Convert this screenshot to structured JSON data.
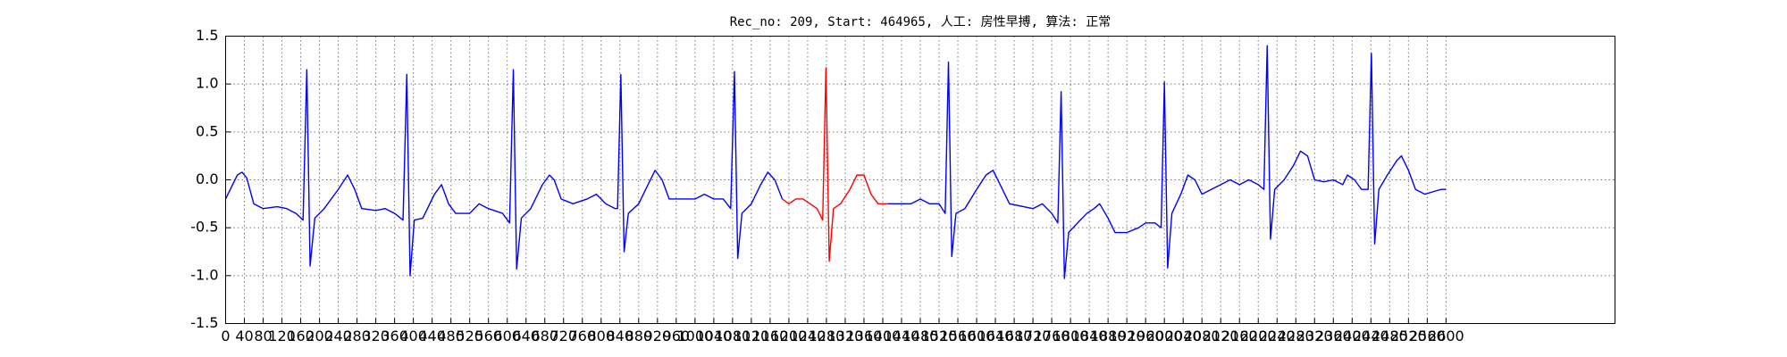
{
  "chart_data": {
    "type": "line",
    "title": "Rec_no: 209, Start: 464965, 人工: 房性早搏, 算法: 正常",
    "xlim": [
      0,
      2960
    ],
    "ylim": [
      -1.5,
      1.5
    ],
    "xticks": [
      0,
      40,
      80,
      120,
      160,
      200,
      240,
      280,
      320,
      360,
      400,
      440,
      480,
      520,
      560,
      600,
      640,
      680,
      720,
      760,
      800,
      840,
      880,
      920,
      960,
      1000,
      1040,
      1080,
      1120,
      1160,
      1200,
      1240,
      1280,
      1320,
      1360,
      1400,
      1440,
      1480,
      1520,
      1560,
      1600,
      1640,
      1680,
      1720,
      1760,
      1800,
      1840,
      1880,
      1920,
      1960,
      2000,
      2040,
      2080,
      2120,
      2160,
      2200,
      2240,
      2280,
      2320,
      2360,
      2400,
      2440,
      2480,
      2520,
      2560,
      2600
    ],
    "yticks": [
      -1.5,
      {
        "value": -1.0,
        "label": "-1.0"
      },
      -0.5,
      {
        "value": 0.0,
        "label": "0.0"
      },
      0.5,
      {
        "value": 1.0,
        "label": "1.0"
      },
      1.5
    ],
    "grid": true,
    "series": [
      {
        "color": "#0000ff",
        "x": [
          0,
          10,
          25,
          35,
          45,
          60,
          80,
          110,
          130,
          150,
          165,
          173,
          180,
          190,
          210,
          240,
          260,
          275,
          290,
          320,
          340,
          360,
          378,
          386,
          393,
          402,
          420,
          445,
          460,
          475,
          490,
          520,
          540,
          560,
          590,
          605,
          613,
          620,
          630,
          650,
          675,
          690,
          700,
          715,
          740,
          770,
          790,
          810,
          830,
          835,
          842,
          849,
          858,
          880,
          900,
          915,
          930,
          945,
          980,
          1000,
          1020,
          1040,
          1060,
          1076,
          1084,
          1091,
          1100,
          1120,
          1140,
          1155,
          1170,
          1186
        ],
        "values": [
          -0.2,
          -0.1,
          0.05,
          0.08,
          0.02,
          -0.25,
          -0.3,
          -0.28,
          -0.3,
          -0.35,
          -0.42,
          1.15,
          -0.9,
          -0.4,
          -0.3,
          -0.1,
          0.05,
          -0.1,
          -0.3,
          -0.32,
          -0.3,
          -0.35,
          -0.42,
          1.1,
          -1.0,
          -0.42,
          -0.4,
          -0.15,
          -0.05,
          -0.25,
          -0.35,
          -0.35,
          -0.25,
          -0.3,
          -0.35,
          -0.45,
          1.15,
          -0.93,
          -0.4,
          -0.3,
          -0.05,
          0.05,
          0.0,
          -0.2,
          -0.25,
          -0.2,
          -0.15,
          -0.25,
          -0.3,
          -0.3,
          1.1,
          -0.75,
          -0.35,
          -0.25,
          -0.05,
          0.1,
          0.0,
          -0.2,
          -0.2,
          -0.2,
          -0.15,
          -0.2,
          -0.2,
          -0.3,
          1.13,
          -0.82,
          -0.35,
          -0.25,
          -0.05,
          0.08,
          0.0,
          -0.2
        ]
      },
      {
        "color": "#ff0000",
        "x": [
          1186,
          1200,
          1215,
          1230,
          1245,
          1260,
          1272,
          1279,
          1286,
          1295,
          1310,
          1330,
          1345,
          1360,
          1375,
          1390,
          1411
        ],
        "values": [
          -0.2,
          -0.25,
          -0.2,
          -0.2,
          -0.25,
          -0.3,
          -0.42,
          1.17,
          -0.85,
          -0.3,
          -0.25,
          -0.1,
          0.05,
          0.05,
          -0.15,
          -0.25,
          -0.25
        ]
      },
      {
        "color": "#0000ff",
        "x": [
          1411,
          1430,
          1460,
          1480,
          1500,
          1520,
          1533,
          1540,
          1547,
          1556,
          1575,
          1600,
          1620,
          1635,
          1650,
          1670,
          1700,
          1720,
          1740,
          1760,
          1773,
          1780,
          1787,
          1796,
          1815,
          1835,
          1850,
          1862,
          1880,
          1895,
          1920,
          1945,
          1960,
          1980,
          1993,
          2000,
          2007,
          2016,
          2035,
          2050,
          2065,
          2080,
          2100,
          2120,
          2140,
          2160,
          2180,
          2200,
          2212,
          2219,
          2226,
          2235,
          2255,
          2275,
          2290,
          2305,
          2320,
          2340,
          2360,
          2380,
          2390,
          2405,
          2420,
          2434,
          2441,
          2448,
          2457,
          2475,
          2495,
          2505,
          2520,
          2535,
          2555,
          2575,
          2590,
          2600
        ],
        "values": [
          -0.25,
          -0.25,
          -0.25,
          -0.2,
          -0.25,
          -0.25,
          -0.35,
          1.23,
          -0.8,
          -0.35,
          -0.3,
          -0.1,
          0.05,
          0.1,
          -0.05,
          -0.25,
          -0.28,
          -0.3,
          -0.25,
          -0.35,
          -0.45,
          0.92,
          -1.03,
          -0.55,
          -0.45,
          -0.35,
          -0.3,
          -0.25,
          -0.4,
          -0.55,
          -0.55,
          -0.5,
          -0.45,
          -0.45,
          -0.5,
          1.02,
          -0.92,
          -0.35,
          -0.15,
          0.05,
          0.0,
          -0.15,
          -0.1,
          -0.05,
          0.0,
          -0.05,
          0.0,
          -0.05,
          -0.1,
          1.4,
          -0.62,
          -0.1,
          0.0,
          0.15,
          0.3,
          0.25,
          0.0,
          -0.02,
          0.0,
          -0.05,
          0.05,
          0.0,
          -0.1,
          -0.1,
          1.32,
          -0.67,
          -0.1,
          0.05,
          0.2,
          0.25,
          0.1,
          -0.1,
          -0.15,
          -0.12,
          -0.1,
          -0.1
        ]
      }
    ]
  }
}
